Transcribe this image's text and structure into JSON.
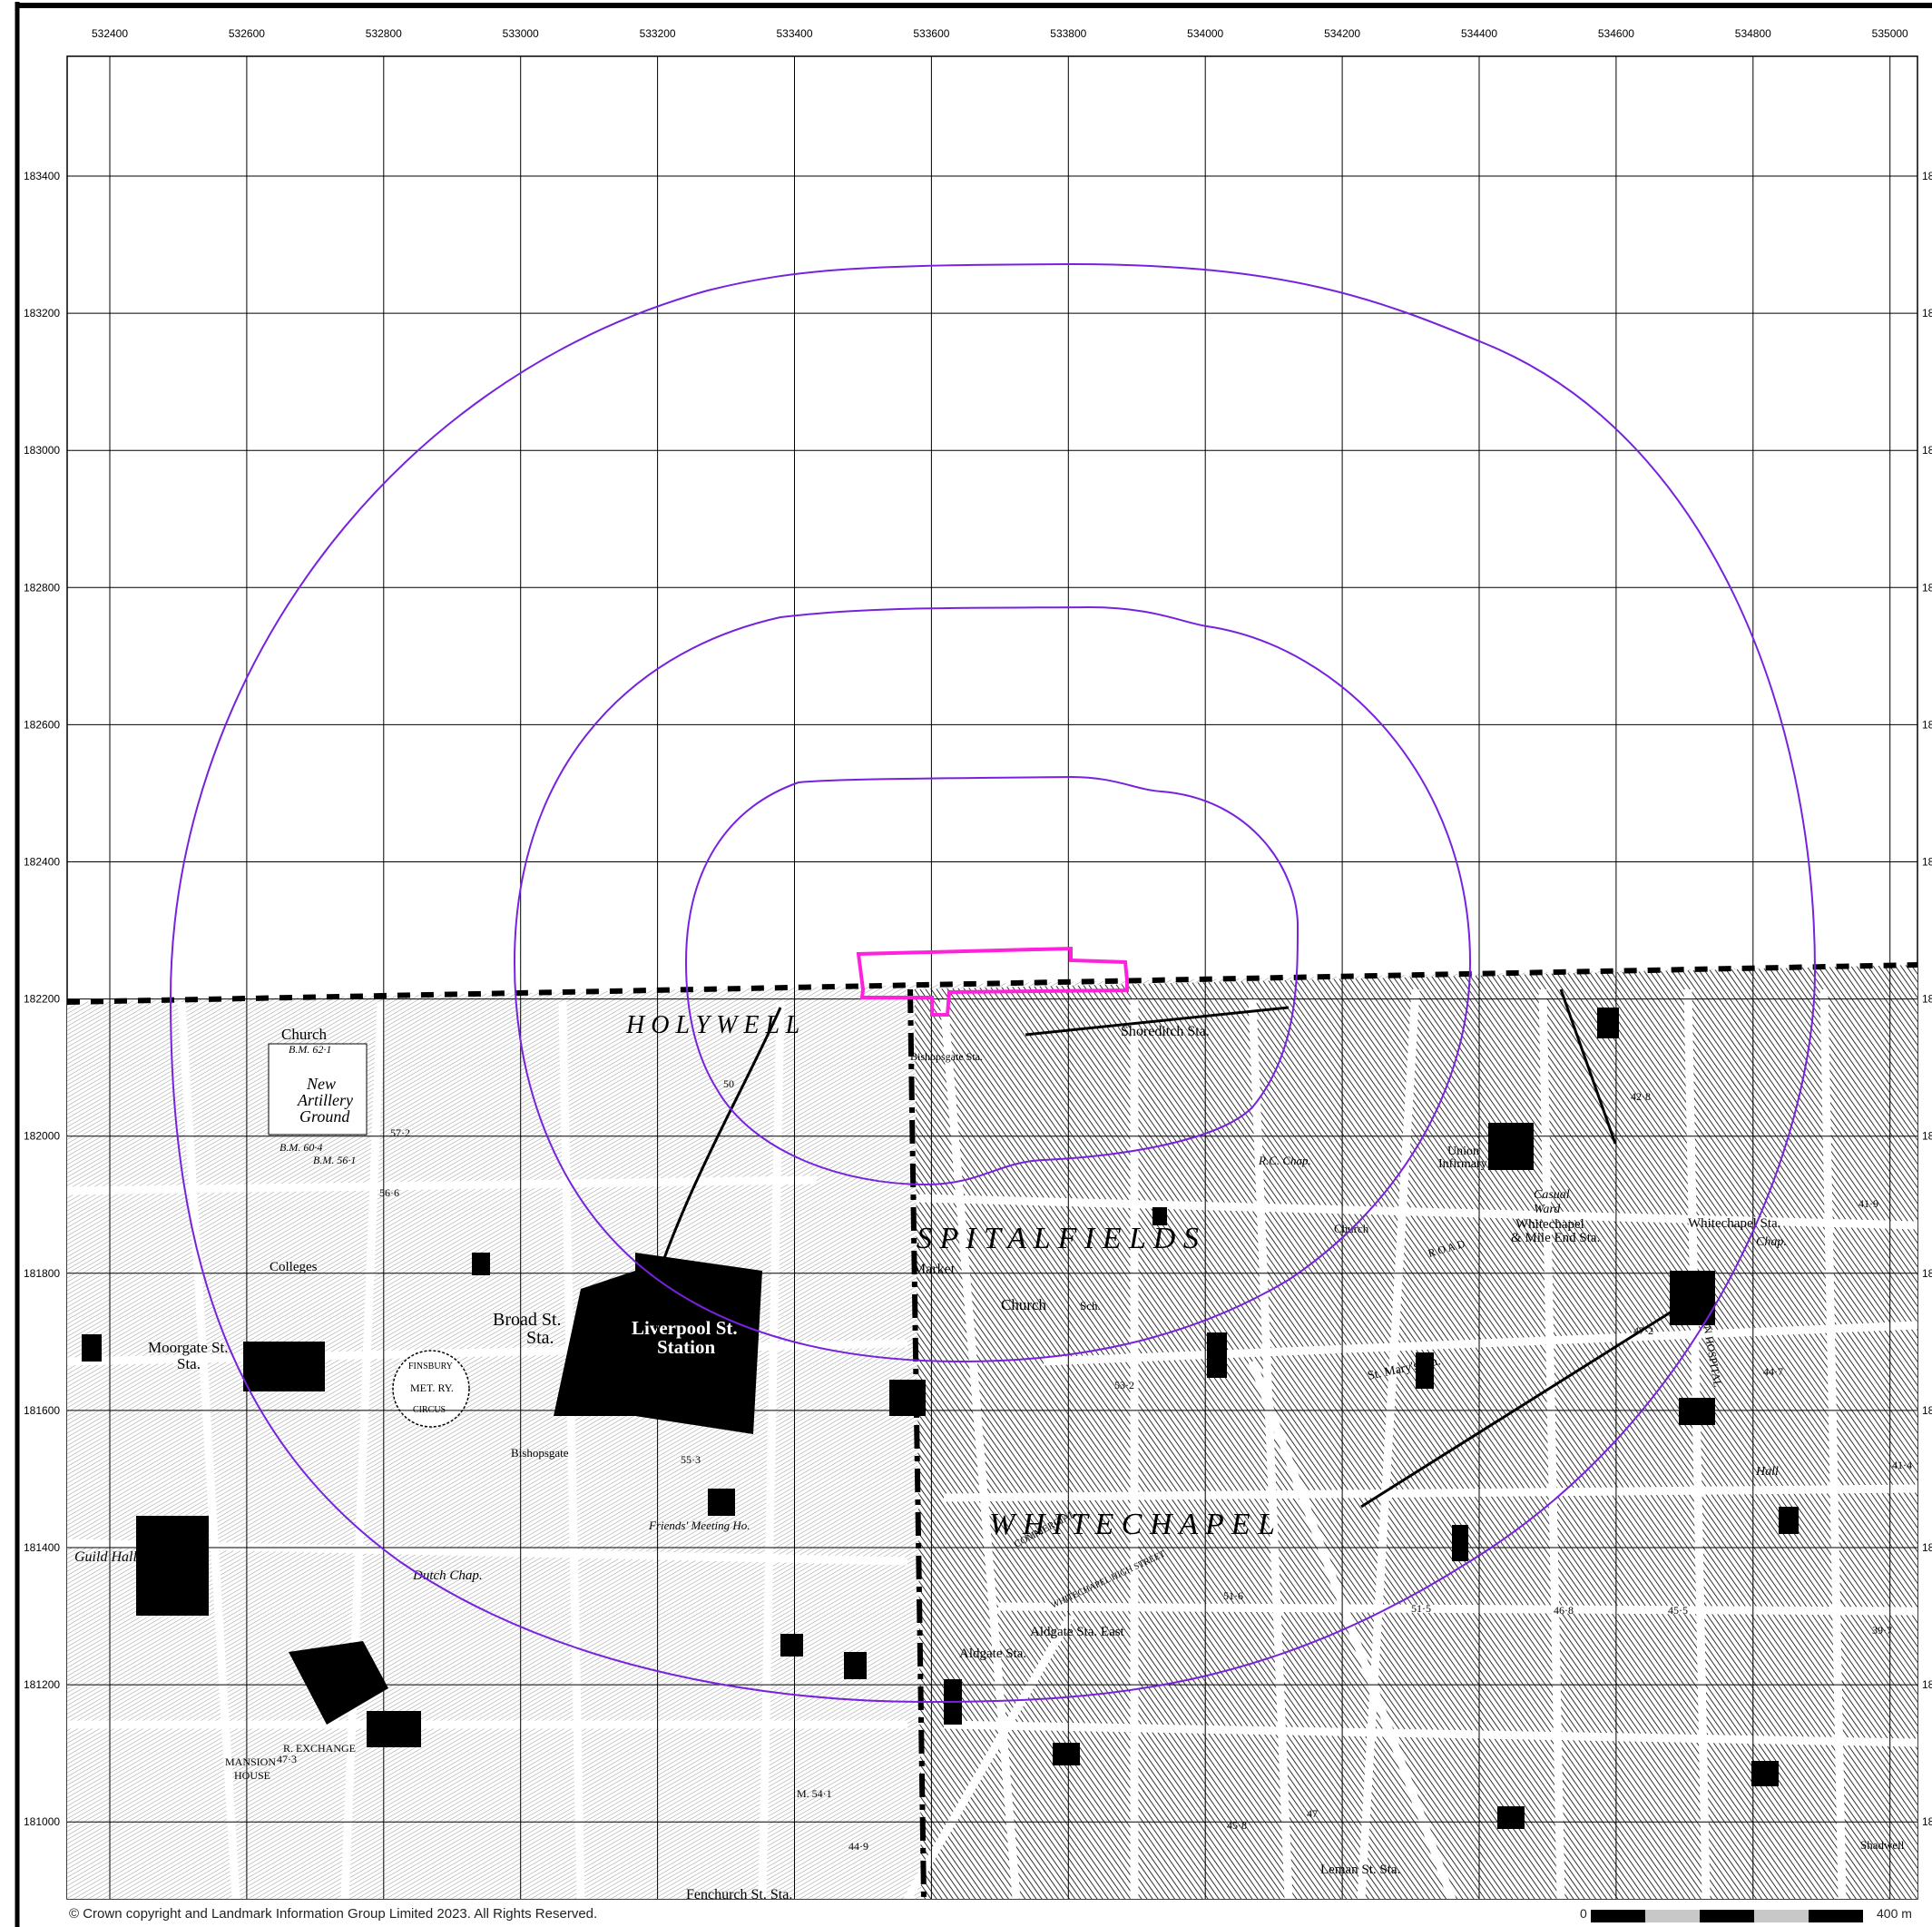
{
  "map": {
    "grid_eastings": [
      "532400",
      "532600",
      "532800",
      "533000",
      "533200",
      "533400",
      "533600",
      "533800",
      "534000",
      "534200",
      "534400",
      "534600",
      "534800",
      "535000"
    ],
    "grid_northings": [
      "183400",
      "183200",
      "183000",
      "182800",
      "182600",
      "182400",
      "182200",
      "182000",
      "181800",
      "181600",
      "181400",
      "181200",
      "181000"
    ],
    "right_edge_northings": [
      "18",
      "18",
      "18",
      "18",
      "18",
      "18",
      "18",
      "18",
      "18",
      "18",
      "18",
      "18",
      "18"
    ],
    "buffer_rings": [
      "inner",
      "middle",
      "outer"
    ],
    "colors": {
      "buffer": "#7722dd",
      "site": "#ff22dd",
      "grid": "#000000",
      "map_ink": "#000000"
    },
    "places": {
      "holywell": "H O L Y W E L L",
      "spitalfields": "S P I T A L F I E L D S",
      "whitechapel": "W H I T E C H A P E L",
      "liverpool_station_1": "Liverpool St.",
      "liverpool_station_2": "Station",
      "broad_st_1": "Broad St.",
      "broad_st_2": "Sta.",
      "moorgate_1": "Moorgate St.",
      "moorgate_2": "Sta.",
      "artillery_1": "New",
      "artillery_2": "Artillery",
      "artillery_3": "Ground",
      "church_nw": "Church",
      "bm_nw": "B.M. 62·1",
      "bm_w1": "B.M. 60·4",
      "bm_w2": "B.M. 56·1",
      "shoreditch": "Shoreditch Sta.",
      "bishopsgate_sta": "Bishopsgate Sta.",
      "bishopsgate": "Bishopsgate",
      "market": "Market",
      "church_mid": "Church",
      "sch_mid": "Sch.",
      "union_1": "Union",
      "union_2": "Infirmary",
      "casual_1": "Casual",
      "casual_2": "Ward",
      "whitechapel_mile": "Whitechapel",
      "mile_end": "& Mile End Sta.",
      "whitechapel_sta": "Whitechapel Sta.",
      "london_hospital": "LONDON HOSPITAL",
      "st_marys": "St. Mary's Sta.",
      "aldgate_east": "Aldgate Sta. East",
      "aldgate": "Aldgate Sta.",
      "leman": "Leman St. Sta.",
      "fenchurch": "Fenchurch St. Sta.",
      "guildhall": "Guild Hall",
      "mansion_1": "MANSION",
      "mansion_2": "HOUSE",
      "exchange": "R. EXCHANGE",
      "friends": "Friends' Meeting Ho.",
      "dutch_chap": "Dutch Chap.",
      "college": "Colleges",
      "met_ry": "MET. RY.",
      "finsbury": "FINSBURY",
      "circus": "CIRCUS",
      "rc_chap": "R.C. Chap.",
      "church_e": "Church",
      "chap_e": "Chap.",
      "hall": "Hall",
      "shadwell": "Shadwell",
      "commercial": "COMMERCIAL",
      "whitechapel_high": "WHITECHAPEL HIGH STREET",
      "old_road": "R O A D",
      "bm_e": "41·9",
      "spot_1": "53·2",
      "spot_2": "46·8",
      "spot_3": "45·5",
      "spot_4": "51·6",
      "spot_5": "44·9",
      "spot_6": "47·3",
      "spot_7": "49·6",
      "spot_8": "55·3",
      "spot_9": "57·2",
      "spot_10": "42·8",
      "spot_11": "M. 54·1",
      "spot_12": "44·7",
      "spot_13": "39·7",
      "spot_14": "47",
      "spot_15": "45·8",
      "spot_16": "50",
      "spot_17": "51·5",
      "spot_18": "41·4",
      "spot_19": "47·2",
      "spot_20": "56·6"
    }
  },
  "footer": {
    "copyright": "© Crown copyright and Landmark Information Group Limited 2023.  All Rights Reserved.",
    "scale_zero": "0",
    "scale_end": "400 m"
  }
}
